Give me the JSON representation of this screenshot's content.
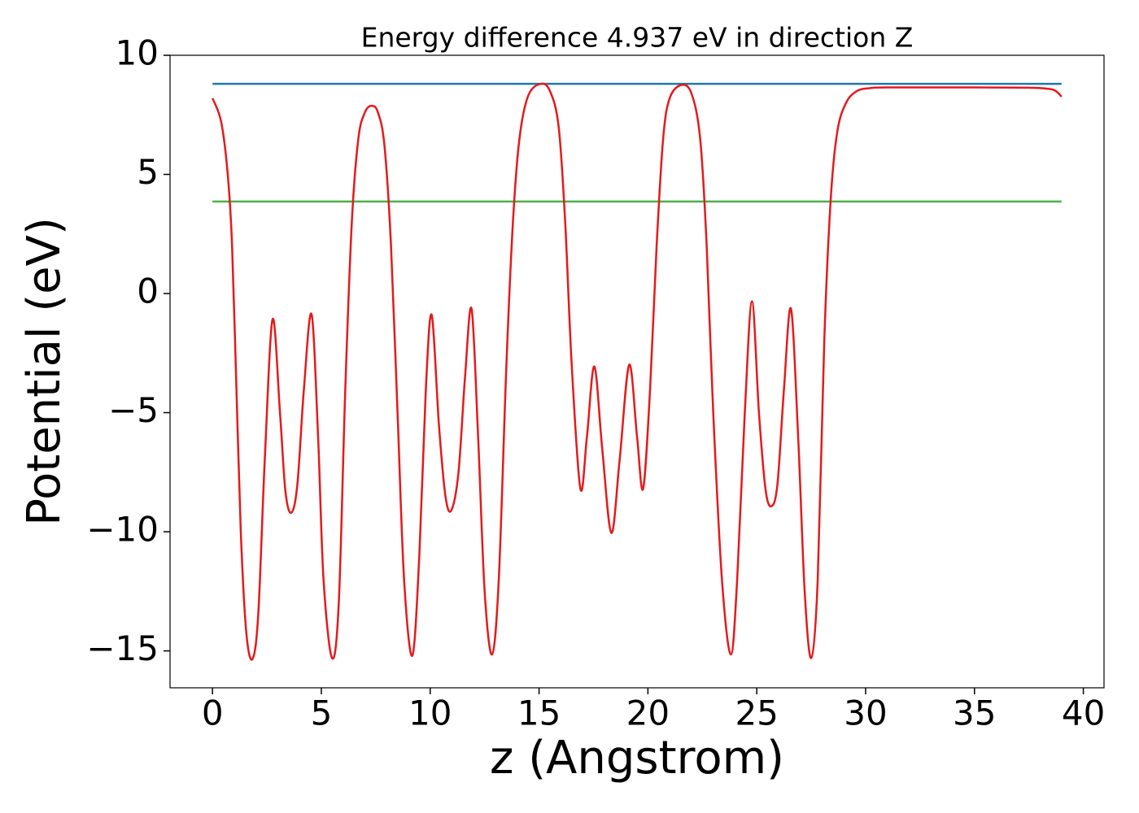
{
  "chart_data": {
    "type": "line",
    "title": "Energy difference 4.937 eV in direction Z",
    "x_label": "z (Angstrom)",
    "y_label": "Potential (eV)",
    "xlim": [
      -1.95,
      40.95
    ],
    "ylim": [
      -16.55,
      10.0
    ],
    "xticks": [
      0,
      5,
      10,
      15,
      20,
      25,
      30,
      35,
      40
    ],
    "yticks": [
      {
        "value": -15,
        "label": "−15"
      },
      {
        "value": -10,
        "label": "−10"
      },
      {
        "value": -5,
        "label": "−5"
      },
      0,
      5,
      10
    ],
    "series": [
      {
        "color": "#1f77b4",
        "x": [
          0,
          39
        ],
        "values": [
          8.8,
          8.8
        ]
      },
      {
        "color": "#4daf4a",
        "x": [
          0,
          39
        ],
        "values": [
          3.863,
          3.863
        ]
      },
      {
        "color": "#e41a1c",
        "x": [
          0,
          0.4,
          0.7,
          0.9,
          1.1,
          1.3,
          1.55,
          1.83,
          2.1,
          2.4,
          2.76,
          3.1,
          3.35,
          3.62,
          3.9,
          4.2,
          4.55,
          4.85,
          5.1,
          5.49,
          5.8,
          6.1,
          6.4,
          6.7,
          7.0,
          7.31,
          7.6,
          7.9,
          8.2,
          8.5,
          8.8,
          9.18,
          9.5,
          9.8,
          10.07,
          10.4,
          10.7,
          10.97,
          11.3,
          11.6,
          11.9,
          12.2,
          12.5,
          12.84,
          13.15,
          13.5,
          13.8,
          14.1,
          14.5,
          15.07,
          15.5,
          15.9,
          16.2,
          16.5,
          16.9,
          17.2,
          17.54,
          17.9,
          18.32,
          18.7,
          19.14,
          19.5,
          19.78,
          20.1,
          20.4,
          20.7,
          21.0,
          21.53,
          22.0,
          22.4,
          22.7,
          23.0,
          23.4,
          23.81,
          24.1,
          24.45,
          24.78,
          25.1,
          25.4,
          25.67,
          25.95,
          26.25,
          26.57,
          26.9,
          27.2,
          27.5,
          27.8,
          28.1,
          28.4,
          28.7,
          29.1,
          29.6,
          30.2,
          31,
          35,
          37.5,
          38.5,
          38.8,
          39
        ],
        "values": [
          8.2,
          7.2,
          5.0,
          2.0,
          -4,
          -10,
          -14.2,
          -15.35,
          -13.5,
          -7,
          -1.08,
          -5,
          -8.3,
          -9.2,
          -8,
          -4,
          -0.87,
          -6,
          -12,
          -15.3,
          -13,
          -4,
          3,
          6.5,
          7.6,
          7.88,
          7.6,
          6.2,
          2.0,
          -5,
          -12,
          -15.2,
          -11,
          -4,
          -0.9,
          -5.5,
          -8.5,
          -9.1,
          -7.5,
          -3.5,
          -0.64,
          -6,
          -12.5,
          -15.15,
          -12,
          -3,
          3,
          6.5,
          8.3,
          8.8,
          8.5,
          7,
          3,
          -3,
          -8.2,
          -6,
          -3.06,
          -6.5,
          -10.05,
          -7,
          -2.99,
          -6,
          -8.2,
          -4,
          2,
          6.5,
          8.2,
          8.75,
          8.4,
          6.5,
          2,
          -5,
          -12,
          -15.15,
          -12,
          -5,
          -0.33,
          -5,
          -8.2,
          -8.93,
          -8,
          -4,
          -0.64,
          -6,
          -12.5,
          -15.3,
          -12,
          -2,
          4,
          6.8,
          8.0,
          8.5,
          8.62,
          8.65,
          8.65,
          8.64,
          8.58,
          8.45,
          8.26
        ]
      }
    ]
  }
}
